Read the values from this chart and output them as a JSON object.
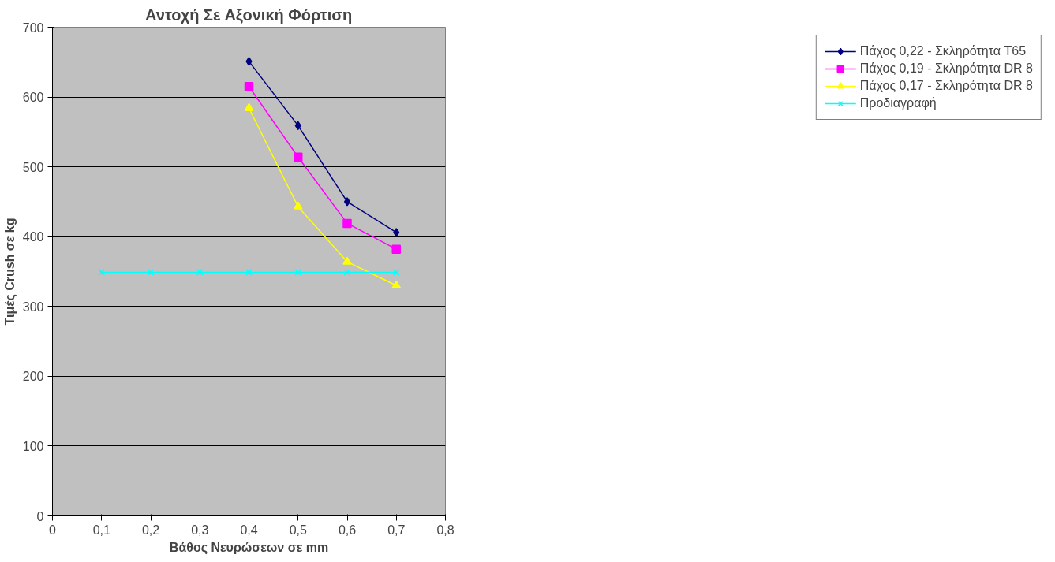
{
  "chart_data": {
    "type": "line",
    "title": "Αντοχή Σε Αξονική Φόρτιση",
    "xlabel": "Βάθος Νευρώσεων σε mm",
    "ylabel": "Τιμές Crush σε kg",
    "x": [
      0.4,
      0.5,
      0.6,
      0.7
    ],
    "series": [
      {
        "name": "Πάχος 0,22 - Σκληρότητα T65",
        "color": "#000080",
        "marker": "diamond",
        "values": [
          651,
          559,
          450,
          406
        ]
      },
      {
        "name": "Πάχος 0,19 - Σκληρότητα DR 8",
        "color": "#ff00ff",
        "marker": "square",
        "values": [
          615,
          514,
          419,
          382
        ]
      },
      {
        "name": "Πάχος 0,17 - Σκληρότητα DR 8",
        "color": "#ffff00",
        "marker": "triangle",
        "values": [
          584,
          443,
          364,
          330
        ]
      },
      {
        "name": "Προδιαγραφή",
        "color": "#00ffff",
        "marker": "cross",
        "x": [
          0.1,
          0.2,
          0.3,
          0.4,
          0.5,
          0.6,
          0.7
        ],
        "values": [
          349,
          349,
          349,
          349,
          349,
          349,
          349
        ]
      }
    ],
    "xlim": [
      0,
      0.8
    ],
    "xticks": [
      0,
      {
        "value": 0.1,
        "label": "0,1"
      },
      {
        "value": 0.2,
        "label": "0,2"
      },
      {
        "value": 0.3,
        "label": "0,3"
      },
      {
        "value": 0.4,
        "label": "0,4"
      },
      {
        "value": 0.5,
        "label": "0,5"
      },
      {
        "value": 0.6,
        "label": "0,6"
      },
      {
        "value": 0.7,
        "label": "0,7"
      },
      {
        "value": 0.8,
        "label": "0,8"
      }
    ],
    "ylim": [
      0,
      700
    ],
    "yticks": [
      0,
      100,
      200,
      300,
      400,
      500,
      600,
      700
    ],
    "grid": "y",
    "legend": "right",
    "line_style": "solid"
  }
}
